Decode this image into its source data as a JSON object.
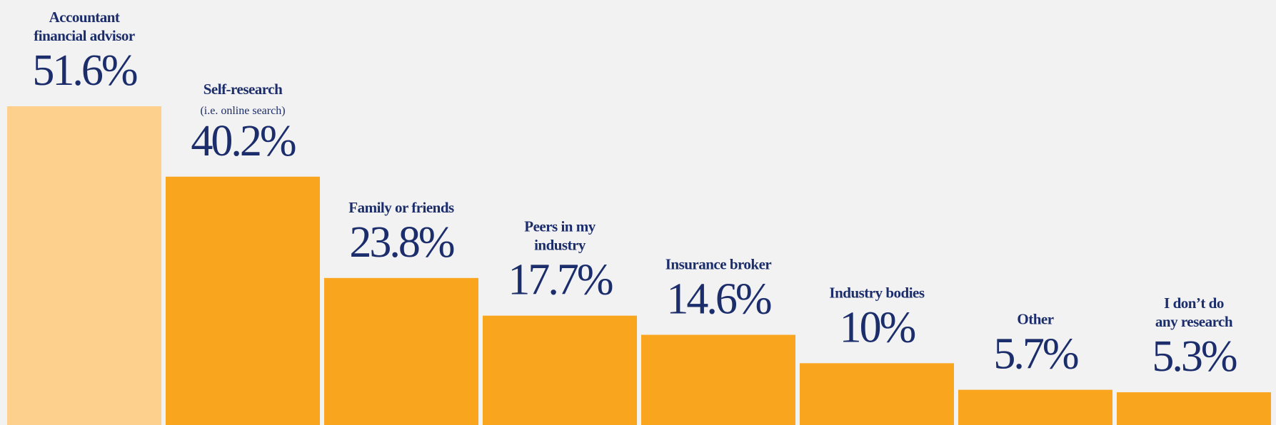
{
  "chart_data": {
    "type": "bar",
    "categories": [
      {
        "lines": [
          "Accountant",
          "financial advisor"
        ]
      },
      {
        "lines": [
          "Self-research"
        ],
        "note": "(i.e. online search)"
      },
      {
        "lines": [
          "Family or friends"
        ]
      },
      {
        "lines": [
          "Peers in my",
          "industry"
        ]
      },
      {
        "lines": [
          "Insurance broker"
        ]
      },
      {
        "lines": [
          "Industry bodies"
        ]
      },
      {
        "lines": [
          "Other"
        ]
      },
      {
        "lines": [
          "I don’t do",
          "any research"
        ]
      }
    ],
    "values": [
      51.6,
      40.2,
      23.8,
      17.7,
      14.6,
      10,
      5.7,
      5.3
    ],
    "value_labels": [
      "51.6%",
      "40.2%",
      "23.8%",
      "17.7%",
      "14.6%",
      "10%",
      "5.7%",
      "5.3%"
    ],
    "colors": [
      "#fdd08e",
      "#f9a51d",
      "#f9a51d",
      "#f9a51d",
      "#f9a51d",
      "#f9a51d",
      "#f9a51d",
      "#f9a51d"
    ]
  }
}
